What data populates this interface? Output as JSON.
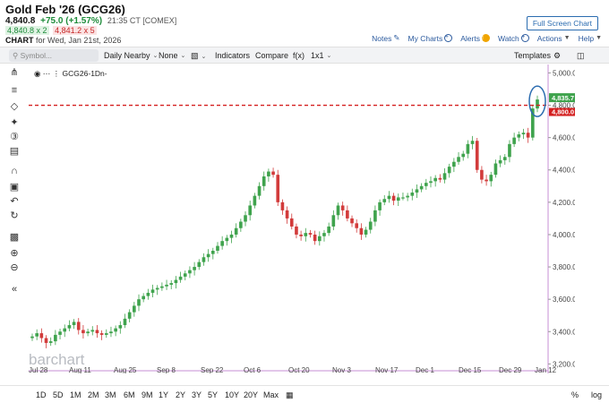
{
  "header": {
    "title": "Gold Feb '26 (GCG26)",
    "last": "4,840.8",
    "change": "+75.0 (+1.57%)",
    "time": "21:35 CT [COMEX]",
    "bid": "4,840.8 x 2",
    "ask": "4,841.2 x 5",
    "chart_label": "CHART",
    "chart_date": "for Wed, Jan 21st, 2026",
    "fullscreen": "Full Screen Chart",
    "links": [
      "Notes",
      "My Charts",
      "Alerts",
      "Watch",
      "Actions",
      "Help"
    ]
  },
  "toolbar": {
    "symbol_placeholder": "Symbol...",
    "items": [
      "Daily Nearby",
      "None",
      "Indicators",
      "Compare",
      "f(x)",
      "1x1",
      "Templates"
    ]
  },
  "chart": {
    "legend": "GCG26-1Dn-",
    "watermark": "barchart",
    "current_price_label": "4,835.7",
    "current_price_label2": "4,800.0",
    "current_price": 4835.7,
    "dashed_level": 4800,
    "colors": {
      "up": "#3fa34d",
      "down": "#d23b3b",
      "line": "#d42020",
      "label_bg": "#3fa34d"
    }
  },
  "chart_data": {
    "type": "candlestick",
    "x_ticks": [
      "Jul 28",
      "Aug 11",
      "Aug 25",
      "Sep 8",
      "Sep 22",
      "Oct 6",
      "Oct 20",
      "Nov 3",
      "Nov 17",
      "Dec 1",
      "Dec 15",
      "Dec 29",
      "Jan 12"
    ],
    "y_ticks": [
      3200,
      3400,
      3600,
      3800,
      4000,
      4200,
      4400,
      4600,
      4800,
      5000
    ],
    "y_tick_labels": [
      "3,200.0",
      "3,400.0",
      "3,600.0",
      "3,800.0",
      "4,000.0",
      "4,200.0",
      "4,400.0",
      "4,600.0",
      "4,800.0",
      "5,000.0"
    ],
    "ylim": [
      3180,
      5030
    ],
    "closes": [
      3370,
      3390,
      3360,
      3330,
      3340,
      3380,
      3400,
      3420,
      3440,
      3460,
      3410,
      3390,
      3400,
      3410,
      3390,
      3380,
      3390,
      3400,
      3420,
      3440,
      3480,
      3520,
      3560,
      3600,
      3620,
      3640,
      3660,
      3670,
      3680,
      3690,
      3700,
      3720,
      3740,
      3760,
      3780,
      3800,
      3830,
      3860,
      3880,
      3900,
      3930,
      3960,
      3980,
      4000,
      4040,
      4080,
      4120,
      4180,
      4240,
      4300,
      4360,
      4390,
      4370,
      4200,
      4150,
      4100,
      4050,
      4000,
      3990,
      4010,
      4000,
      3960,
      3990,
      4010,
      4050,
      4120,
      4180,
      4150,
      4100,
      4070,
      4040,
      4000,
      4030,
      4080,
      4150,
      4200,
      4220,
      4240,
      4210,
      4230,
      4230,
      4240,
      4260,
      4280,
      4300,
      4320,
      4330,
      4350,
      4340,
      4380,
      4420,
      4450,
      4480,
      4500,
      4560,
      4580,
      4400,
      4340,
      4330,
      4370,
      4440,
      4460,
      4480,
      4560,
      4600,
      4620,
      4630,
      4600,
      4780,
      4835.7
    ],
    "opens": [
      3360,
      3370,
      3390,
      3360,
      3330,
      3340,
      3380,
      3400,
      3420,
      3440,
      3460,
      3410,
      3390,
      3400,
      3410,
      3390,
      3380,
      3390,
      3400,
      3420,
      3440,
      3480,
      3520,
      3560,
      3600,
      3620,
      3640,
      3660,
      3670,
      3680,
      3690,
      3700,
      3720,
      3740,
      3760,
      3780,
      3800,
      3830,
      3860,
      3880,
      3900,
      3930,
      3960,
      3980,
      4000,
      4040,
      4080,
      4120,
      4180,
      4240,
      4300,
      4360,
      4390,
      4370,
      4200,
      4150,
      4100,
      4050,
      4000,
      3990,
      4010,
      4000,
      3960,
      3990,
      4010,
      4050,
      4120,
      4180,
      4150,
      4100,
      4070,
      4040,
      4000,
      4030,
      4080,
      4150,
      4200,
      4220,
      4240,
      4210,
      4230,
      4230,
      4240,
      4260,
      4280,
      4300,
      4320,
      4330,
      4350,
      4340,
      4380,
      4420,
      4450,
      4480,
      4500,
      4560,
      4580,
      4400,
      4340,
      4330,
      4370,
      4440,
      4460,
      4480,
      4560,
      4600,
      4620,
      4630,
      4600,
      4780
    ]
  },
  "bottombar": {
    "periods": [
      "1D",
      "5D",
      "1M",
      "2M",
      "3M",
      "6M",
      "9M",
      "1Y",
      "2Y",
      "3Y",
      "5Y",
      "10Y",
      "20Y",
      "Max"
    ],
    "right": [
      "%",
      "log"
    ]
  }
}
